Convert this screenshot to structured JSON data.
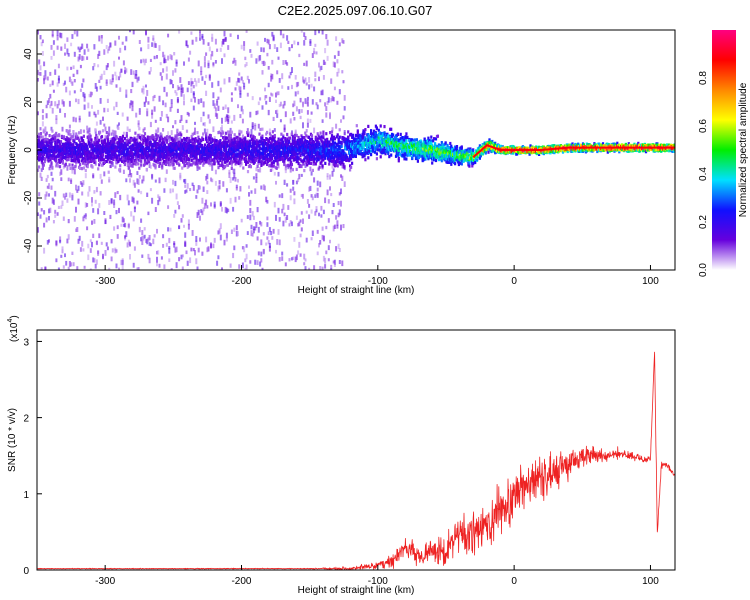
{
  "title": "C2E2.2025.097.06.10.G07",
  "chart_data": [
    {
      "type": "heatmap",
      "name": "spectrogram",
      "xlabel": "Height of straight line (km)",
      "ylabel": "Frequency (Hz)",
      "xlim": [
        -350,
        118
      ],
      "ylim": [
        -50,
        50
      ],
      "xticks": [
        -300,
        -200,
        -100,
        0,
        100
      ],
      "xtick_labels": [
        "-300",
        "-200",
        "-100",
        "0",
        "100"
      ],
      "yticks": [
        -40,
        -20,
        0,
        20,
        40
      ],
      "ytick_labels": [
        "-40",
        "-20",
        "0",
        "20",
        "40"
      ],
      "ridge": {
        "x": [
          -350,
          -300,
          -250,
          -200,
          -150,
          -125,
          -100,
          -80,
          -60,
          -45,
          -30,
          -20,
          -10,
          0,
          20,
          40,
          60,
          80,
          100,
          118
        ],
        "freq": [
          0,
          0,
          0,
          0,
          0,
          0,
          4,
          1,
          0,
          -2,
          -3,
          2,
          0,
          0,
          0,
          1,
          1,
          1,
          1,
          1
        ],
        "amplitude": [
          0.2,
          0.2,
          0.2,
          0.22,
          0.25,
          0.3,
          0.45,
          0.5,
          0.55,
          0.5,
          0.6,
          0.8,
          0.9,
          0.95,
          0.95,
          0.95,
          0.95,
          0.95,
          0.95,
          0.95
        ],
        "spread_hz": [
          10,
          10,
          10,
          10,
          10,
          10,
          8,
          7,
          7,
          6,
          4,
          3,
          2,
          2,
          2,
          2,
          2,
          2,
          2,
          2
        ]
      },
      "noise_floor_end_km": -125
    },
    {
      "type": "colorbar",
      "name": "amplitude-scale",
      "label": "Normalized spectral amplitude",
      "ticks": [
        0.0,
        0.2,
        0.4,
        0.6,
        0.8
      ],
      "tick_labels": [
        "0.0",
        "0.2",
        "0.4",
        "0.6",
        "0.8"
      ],
      "range": [
        0,
        1
      ],
      "colormap": [
        "#ffffff",
        "#6600dd",
        "#1010ff",
        "#00e0ff",
        "#00ee00",
        "#ffff00",
        "#ff8800",
        "#ff0000",
        "#ff0080"
      ]
    },
    {
      "type": "line",
      "name": "snr",
      "xlabel": "Height of straight line (km)",
      "ylabel": "SNR (10 * v/v)",
      "y_multiplier_label": "(x10",
      "y_multiplier_exp": "4",
      "y_multiplier_close": ")",
      "xlim": [
        -350,
        118
      ],
      "ylim": [
        0,
        3.15
      ],
      "xticks": [
        -300,
        -200,
        -100,
        0,
        100
      ],
      "xtick_labels": [
        "-300",
        "-200",
        "-100",
        "0",
        "100"
      ],
      "yticks": [
        0,
        1,
        2,
        3
      ],
      "ytick_labels": [
        "0",
        "1",
        "2",
        "3"
      ],
      "color": "#ee2222",
      "envelope": {
        "x": [
          -350,
          -250,
          -150,
          -120,
          -100,
          -90,
          -80,
          -70,
          -60,
          -50,
          -40,
          -30,
          -20,
          -10,
          0,
          10,
          20,
          30,
          40,
          50,
          60,
          70,
          80,
          90,
          100,
          103,
          105,
          108,
          112,
          118
        ],
        "y": [
          0.02,
          0.02,
          0.02,
          0.03,
          0.08,
          0.15,
          0.35,
          0.25,
          0.3,
          0.35,
          0.55,
          0.6,
          0.7,
          0.9,
          1.1,
          1.25,
          1.3,
          1.4,
          1.45,
          1.55,
          1.55,
          1.55,
          1.55,
          1.5,
          1.45,
          2.9,
          0.5,
          1.4,
          1.4,
          1.25
        ]
      },
      "noise": {
        "x": [
          -350,
          -150,
          -100,
          -80,
          -50,
          -30,
          -10,
          10,
          30,
          50,
          80,
          100,
          118
        ],
        "amp": [
          0.01,
          0.01,
          0.08,
          0.3,
          0.4,
          0.6,
          0.7,
          0.6,
          0.5,
          0.3,
          0.12,
          0.1,
          0.08
        ]
      }
    }
  ]
}
